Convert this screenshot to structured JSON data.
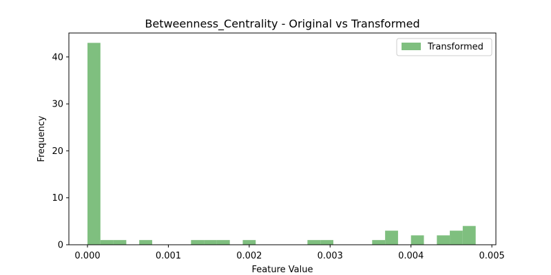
{
  "chart_data": {
    "type": "bar",
    "title": "Betweenness_Centrality - Original vs Transformed",
    "xlabel": "Feature Value",
    "ylabel": "Frequency",
    "xlim": [
      -0.00023,
      0.00505
    ],
    "ylim": [
      0,
      45.1
    ],
    "xticks": [
      0.0,
      0.001,
      0.002,
      0.003,
      0.004,
      0.005
    ],
    "xtick_labels": [
      "0.000",
      "0.001",
      "0.002",
      "0.003",
      "0.004",
      "0.005"
    ],
    "yticks": [
      0,
      10,
      20,
      30,
      40
    ],
    "ytick_labels": [
      "0",
      "10",
      "20",
      "30",
      "40"
    ],
    "grid": false,
    "legend_position": "top-right",
    "series": [
      {
        "name": "Transformed",
        "color": "#7fbf7f",
        "bin_width": 0.00016,
        "bins": [
          {
            "x": 0.0,
            "count": 43
          },
          {
            "x": 0.00016,
            "count": 1
          },
          {
            "x": 0.00032,
            "count": 1
          },
          {
            "x": 0.00064,
            "count": 1
          },
          {
            "x": 0.00128,
            "count": 1
          },
          {
            "x": 0.00144,
            "count": 1
          },
          {
            "x": 0.0016,
            "count": 1
          },
          {
            "x": 0.00192,
            "count": 1
          },
          {
            "x": 0.00272,
            "count": 1
          },
          {
            "x": 0.00288,
            "count": 1
          },
          {
            "x": 0.00352,
            "count": 1
          },
          {
            "x": 0.00368,
            "count": 3
          },
          {
            "x": 0.004,
            "count": 2
          },
          {
            "x": 0.00432,
            "count": 2
          },
          {
            "x": 0.00448,
            "count": 3
          },
          {
            "x": 0.00464,
            "count": 4
          }
        ]
      }
    ]
  }
}
